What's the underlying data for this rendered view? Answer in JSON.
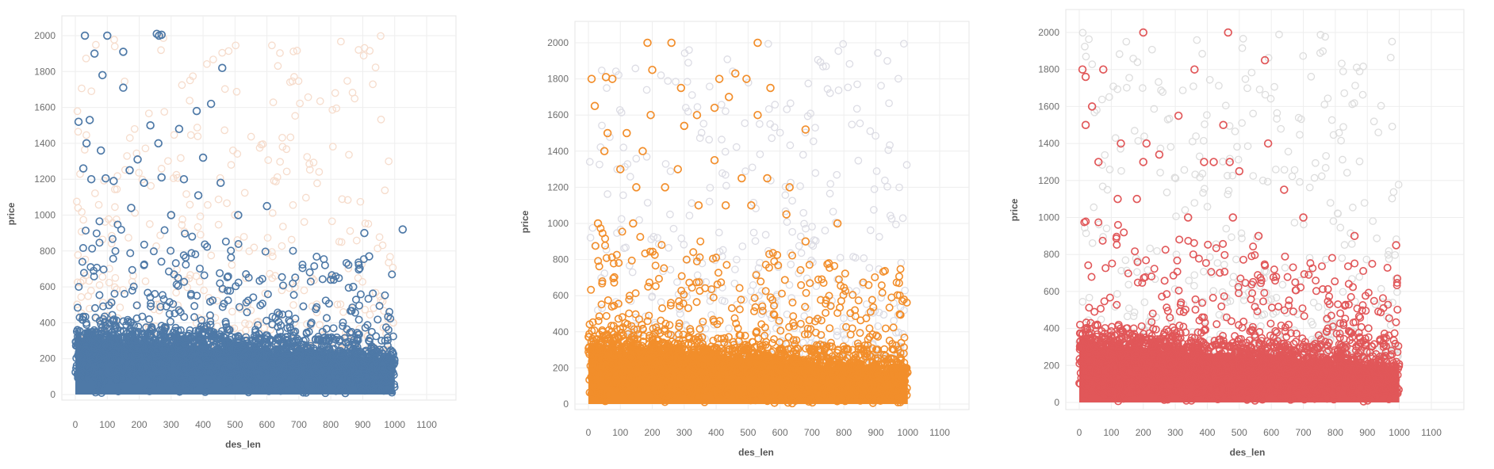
{
  "chart_data": [
    {
      "type": "scatter",
      "xlabel": "des_len",
      "ylabel": "price",
      "xlim": [
        0,
        1100
      ],
      "ylim": [
        0,
        2000
      ],
      "xticks": [
        0,
        100,
        200,
        300,
        400,
        500,
        600,
        700,
        800,
        900,
        1000,
        1100
      ],
      "yticks": [
        0,
        200,
        400,
        600,
        800,
        1000,
        1200,
        1400,
        1600,
        1800,
        2000
      ],
      "grid": true,
      "marker": "hollow-circle",
      "highlight_color": "#4e79a7",
      "context_color": "#f6dccc",
      "dense_region": {
        "x": [
          0,
          1000
        ],
        "y": [
          0,
          300
        ]
      },
      "outliers": [
        [
          30,
          2000
        ],
        [
          100,
          2000
        ],
        [
          60,
          1900
        ],
        [
          150,
          1910
        ],
        [
          85,
          1780
        ],
        [
          255,
          2010
        ],
        [
          262,
          2000
        ],
        [
          270,
          2005
        ],
        [
          460,
          1820
        ],
        [
          150,
          1710
        ],
        [
          10,
          1520
        ],
        [
          45,
          1530
        ],
        [
          425,
          1620
        ],
        [
          380,
          1580
        ],
        [
          235,
          1500
        ],
        [
          325,
          1480
        ],
        [
          35,
          1400
        ],
        [
          80,
          1360
        ],
        [
          260,
          1400
        ],
        [
          195,
          1310
        ],
        [
          170,
          1250
        ],
        [
          400,
          1320
        ],
        [
          340,
          1200
        ],
        [
          25,
          1260
        ],
        [
          50,
          1200
        ],
        [
          95,
          1205
        ],
        [
          120,
          1190
        ],
        [
          215,
          1180
        ],
        [
          270,
          1210
        ],
        [
          455,
          1180
        ],
        [
          385,
          1110
        ],
        [
          300,
          1000
        ],
        [
          600,
          1050
        ],
        [
          510,
          1000
        ],
        [
          175,
          1040
        ],
        [
          905,
          900
        ],
        [
          1025,
          920
        ],
        [
          920,
          770
        ],
        [
          870,
          600
        ],
        [
          800,
          640
        ]
      ]
    },
    {
      "type": "scatter",
      "xlabel": "des_len",
      "ylabel": "price",
      "xlim": [
        0,
        1100
      ],
      "ylim": [
        0,
        2000
      ],
      "xticks": [
        0,
        100,
        200,
        300,
        400,
        500,
        600,
        700,
        800,
        900,
        1000,
        1100
      ],
      "yticks": [
        0,
        200,
        400,
        600,
        800,
        1000,
        1200,
        1400,
        1600,
        1800,
        2000
      ],
      "grid": true,
      "marker": "hollow-circle",
      "highlight_color": "#f28e2b",
      "context_color": "#dcdce4",
      "dense_region": {
        "x": [
          0,
          1000
        ],
        "y": [
          0,
          300
        ]
      },
      "outliers": [
        [
          185,
          2000
        ],
        [
          260,
          2000
        ],
        [
          530,
          2000
        ],
        [
          10,
          1800
        ],
        [
          55,
          1810
        ],
        [
          75,
          1800
        ],
        [
          200,
          1850
        ],
        [
          410,
          1800
        ],
        [
          460,
          1830
        ],
        [
          495,
          1800
        ],
        [
          570,
          1750
        ],
        [
          440,
          1700
        ],
        [
          290,
          1750
        ],
        [
          20,
          1650
        ],
        [
          195,
          1600
        ],
        [
          340,
          1600
        ],
        [
          530,
          1600
        ],
        [
          395,
          1640
        ],
        [
          680,
          1520
        ],
        [
          300,
          1540
        ],
        [
          60,
          1500
        ],
        [
          120,
          1500
        ],
        [
          50,
          1400
        ],
        [
          170,
          1400
        ],
        [
          395,
          1350
        ],
        [
          280,
          1300
        ],
        [
          100,
          1300
        ],
        [
          150,
          1200
        ],
        [
          240,
          1200
        ],
        [
          480,
          1250
        ],
        [
          560,
          1250
        ],
        [
          630,
          1200
        ],
        [
          345,
          1100
        ],
        [
          430,
          1100
        ],
        [
          510,
          1100
        ],
        [
          620,
          1050
        ],
        [
          780,
          1000
        ],
        [
          30,
          1000
        ],
        [
          140,
          1000
        ],
        [
          680,
          900
        ]
      ]
    },
    {
      "type": "scatter",
      "xlabel": "des_len",
      "ylabel": "price",
      "xlim": [
        0,
        1100
      ],
      "ylim": [
        0,
        2000
      ],
      "xticks": [
        0,
        100,
        200,
        300,
        400,
        500,
        600,
        700,
        800,
        900,
        1000,
        1100
      ],
      "yticks": [
        0,
        200,
        400,
        600,
        800,
        1000,
        1200,
        1400,
        1600,
        1800,
        2000
      ],
      "grid": true,
      "marker": "hollow-circle",
      "highlight_color": "#e15759",
      "context_color": "#dddddd",
      "dense_region": {
        "x": [
          0,
          1000
        ],
        "y": [
          0,
          300
        ]
      },
      "outliers": [
        [
          200,
          2000
        ],
        [
          465,
          2000
        ],
        [
          10,
          1800
        ],
        [
          20,
          1760
        ],
        [
          75,
          1800
        ],
        [
          360,
          1800
        ],
        [
          580,
          1850
        ],
        [
          40,
          1600
        ],
        [
          310,
          1550
        ],
        [
          450,
          1500
        ],
        [
          20,
          1500
        ],
        [
          130,
          1400
        ],
        [
          210,
          1400
        ],
        [
          590,
          1400
        ],
        [
          60,
          1300
        ],
        [
          200,
          1300
        ],
        [
          250,
          1340
        ],
        [
          420,
          1300
        ],
        [
          470,
          1300
        ],
        [
          500,
          1250
        ],
        [
          390,
          1300
        ],
        [
          640,
          1150
        ],
        [
          120,
          1100
        ],
        [
          180,
          1100
        ],
        [
          340,
          1000
        ],
        [
          480,
          1000
        ],
        [
          700,
          1000
        ],
        [
          560,
          900
        ],
        [
          860,
          900
        ],
        [
          990,
          850
        ]
      ]
    }
  ]
}
